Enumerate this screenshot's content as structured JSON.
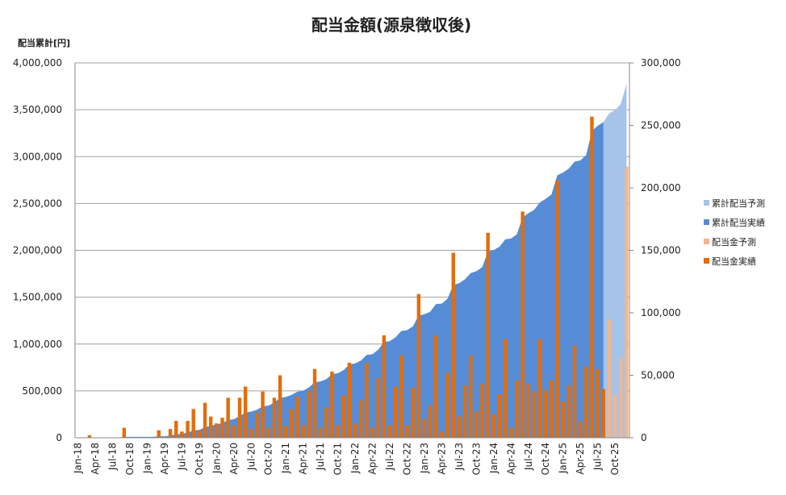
{
  "chart_data": {
    "type": "bar",
    "title": "配当金額(源泉徴収後)",
    "y_label": "配当累計[円]",
    "categories": [
      "Jan-18",
      null,
      null,
      "Apr-18",
      null,
      null,
      "Jul-18",
      null,
      null,
      "Oct-18",
      null,
      null,
      "Jan-19",
      null,
      null,
      "Apr-19",
      null,
      null,
      "Jul-19",
      null,
      null,
      "Oct-19",
      null,
      null,
      "Jan-20",
      null,
      null,
      "Apr-20",
      null,
      null,
      "Jul-20",
      null,
      null,
      "Oct-20",
      null,
      null,
      "Jan-21",
      null,
      null,
      "Apr-21",
      null,
      null,
      "Jul-21",
      null,
      null,
      "Oct-21",
      null,
      null,
      "Jan-22",
      null,
      null,
      "Apr-22",
      null,
      null,
      "Jul-22",
      null,
      null,
      "Oct-22",
      null,
      null,
      "Jan-23",
      null,
      null,
      "Apr-23",
      null,
      null,
      "Jul-23",
      null,
      null,
      "Oct-23",
      null,
      null,
      "Jan-24",
      null,
      null,
      "Apr-24",
      null,
      null,
      "Jul-24",
      null,
      null,
      "Oct-24",
      null,
      null,
      "Jan-25",
      null,
      null,
      "Apr-25",
      null,
      null,
      "Jul-25",
      null,
      null,
      "Oct-25",
      null,
      null
    ],
    "series": [
      {
        "name": "累計配当予測",
        "type": "area",
        "color": "#a6c3ea",
        "values": [
          null,
          null,
          null,
          null,
          null,
          null,
          null,
          null,
          null,
          null,
          null,
          null,
          null,
          null,
          null,
          null,
          null,
          null,
          null,
          null,
          null,
          null,
          null,
          null,
          null,
          null,
          null,
          null,
          null,
          null,
          null,
          null,
          null,
          null,
          null,
          null,
          null,
          null,
          null,
          null,
          null,
          null,
          null,
          null,
          null,
          null,
          null,
          null,
          null,
          null,
          null,
          null,
          null,
          null,
          null,
          null,
          null,
          null,
          null,
          null,
          null,
          null,
          null,
          null,
          null,
          null,
          null,
          null,
          null,
          null,
          null,
          null,
          null,
          null,
          null,
          null,
          null,
          null,
          null,
          null,
          null,
          null,
          null,
          null,
          null,
          null,
          null,
          null,
          null,
          null,
          null,
          3367500,
          3462500,
          3496500,
          3560500,
          3777500
        ]
      },
      {
        "name": "累計配当実績",
        "type": "area",
        "color": "#558cd5",
        "values": [
          0,
          0,
          2000,
          2000,
          2000,
          2000,
          2000,
          2000,
          10000,
          10000,
          10000,
          10000,
          10000,
          10000,
          16000,
          16000,
          23000,
          36500,
          41500,
          55000,
          78000,
          84000,
          112000,
          129000,
          140500,
          156500,
          188500,
          198500,
          230500,
          271500,
          278500,
          298500,
          335500,
          343500,
          375500,
          425500,
          435000,
          458000,
          491000,
          501000,
          538000,
          593000,
          601000,
          625000,
          678000,
          688000,
          722000,
          782000,
          793500,
          823500,
          883500,
          891500,
          939500,
          1021500,
          1031500,
          1072500,
          1138500,
          1148500,
          1188500,
          1303500,
          1318500,
          1344500,
          1426500,
          1431500,
          1483500,
          1631500,
          1648500,
          1690500,
          1756500,
          1777500,
          1820500,
          1984500,
          2003500,
          2038500,
          2117500,
          2125500,
          2171500,
          2352500,
          2395500,
          2432500,
          2511500,
          2549500,
          2595500,
          2801500,
          2830500,
          2872500,
          2946500,
          2959500,
          3016500,
          3273500,
          3328500,
          3367500,
          null,
          null,
          null,
          null
        ]
      },
      {
        "name": "配当金予測",
        "type": "bar",
        "axis": "y2",
        "color": "#f2b68c",
        "values": [
          null,
          null,
          null,
          null,
          null,
          null,
          null,
          null,
          null,
          null,
          null,
          null,
          null,
          null,
          null,
          null,
          null,
          null,
          null,
          null,
          null,
          null,
          null,
          null,
          null,
          null,
          null,
          null,
          null,
          null,
          null,
          null,
          null,
          null,
          null,
          null,
          null,
          null,
          null,
          null,
          null,
          null,
          null,
          null,
          null,
          null,
          null,
          null,
          null,
          null,
          null,
          null,
          null,
          null,
          null,
          null,
          null,
          null,
          null,
          null,
          null,
          null,
          null,
          null,
          null,
          null,
          null,
          null,
          null,
          null,
          null,
          null,
          null,
          null,
          null,
          null,
          null,
          null,
          null,
          null,
          null,
          null,
          null,
          null,
          null,
          null,
          null,
          null,
          null,
          null,
          null,
          null,
          95000,
          34000,
          64000,
          217000
        ]
      },
      {
        "name": "配当金実績",
        "type": "bar",
        "axis": "y2",
        "color": "#e36c0a",
        "values": [
          0,
          0,
          2000,
          0,
          0,
          0,
          0,
          0,
          8000,
          0,
          0,
          0,
          0,
          0,
          6000,
          0,
          7000,
          13500,
          5000,
          13500,
          23000,
          6000,
          28000,
          17000,
          11500,
          16000,
          32000,
          10000,
          32000,
          41000,
          7000,
          20000,
          37000,
          8000,
          32000,
          50000,
          9500,
          23000,
          33000,
          10000,
          37000,
          55000,
          8000,
          24000,
          53000,
          10000,
          34000,
          60000,
          11500,
          30000,
          60000,
          8000,
          48000,
          82000,
          10000,
          41000,
          66000,
          10000,
          40000,
          115000,
          15000,
          26000,
          82000,
          5000,
          52000,
          148000,
          17000,
          42000,
          66000,
          21000,
          43000,
          164000,
          19000,
          35000,
          79000,
          8000,
          46000,
          181000,
          43000,
          37000,
          79000,
          38000,
          46000,
          206000,
          29000,
          42000,
          74000,
          13000,
          57000,
          257000,
          55000,
          39000,
          null,
          null,
          null,
          null
        ]
      }
    ],
    "ylim": [
      0,
      4000000
    ],
    "yticks": [
      0,
      {
        "value": 500000,
        "label": "500,000"
      },
      {
        "value": 1000000,
        "label": "1,000,000"
      },
      {
        "value": 1500000,
        "label": "1,500,000"
      },
      {
        "value": 2000000,
        "label": "2,000,000"
      },
      {
        "value": 2500000,
        "label": "2,500,000"
      },
      {
        "value": 3000000,
        "label": "3,000,000"
      },
      {
        "value": 3500000,
        "label": "3,500,000"
      },
      {
        "value": 4000000,
        "label": "4,000,000"
      }
    ],
    "y2lim": [
      0,
      300000
    ],
    "y2ticks": [
      0,
      {
        "value": 50000,
        "label": "50,000"
      },
      {
        "value": 100000,
        "label": "100,000"
      },
      {
        "value": 150000,
        "label": "150,000"
      },
      {
        "value": 200000,
        "label": "200,000"
      },
      {
        "value": 250000,
        "label": "250,000"
      },
      {
        "value": 300000,
        "label": "300,000"
      }
    ],
    "grid": true,
    "legend": "right"
  }
}
